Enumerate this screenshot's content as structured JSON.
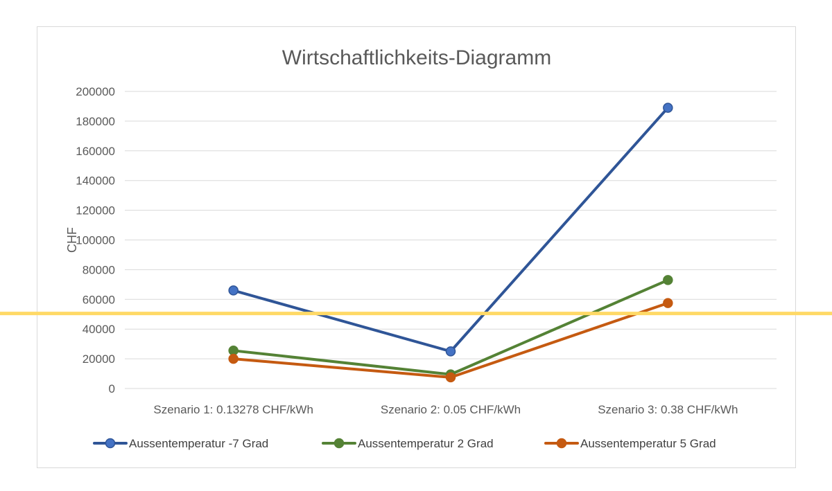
{
  "chart_data": {
    "type": "line",
    "title": "Wirtschaftlichkeits-Diagramm",
    "ylabel": "CHF",
    "xlabel": "",
    "ylim": [
      0,
      200000
    ],
    "ytick_step": 20000,
    "yticks": [
      "0",
      "20000",
      "40000",
      "60000",
      "80000",
      "100000",
      "120000",
      "140000",
      "160000",
      "180000",
      "200000"
    ],
    "grid": true,
    "legend_position": "bottom",
    "categories": [
      "Szenario 1: 0.13278 CHF/kWh",
      "Szenario 2: 0.05 CHF/kWh",
      "Szenario 3: 0.38 CHF/kWh"
    ],
    "series": [
      {
        "name": "Aussentemperatur -7 Grad",
        "color": "#4472c4",
        "line_color": "#2f5597",
        "values": [
          66000,
          25000,
          189000
        ]
      },
      {
        "name": "Aussentemperatur 2 Grad",
        "color": "#548235",
        "line_color": "#548235",
        "values": [
          25500,
          9500,
          73000
        ]
      },
      {
        "name": "Aussentemperatur 5 Grad",
        "color": "#c55a11",
        "line_color": "#c55a11",
        "values": [
          20000,
          7500,
          57500
        ]
      }
    ],
    "reference_line": {
      "value": 50500,
      "color": "#ffd966"
    }
  }
}
